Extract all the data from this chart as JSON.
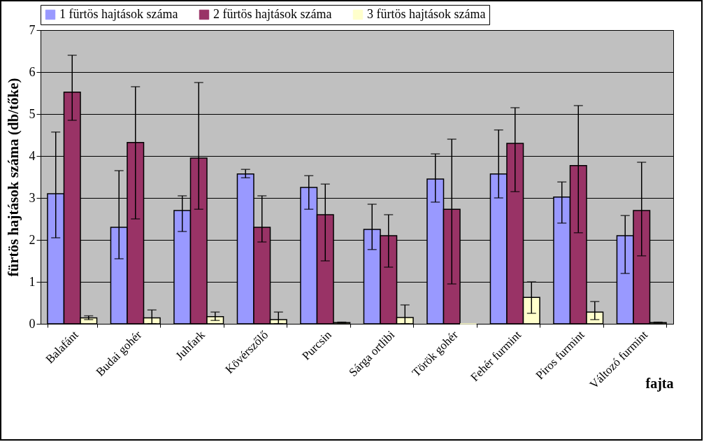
{
  "chart_data": {
    "type": "bar",
    "xlabel": "fajta",
    "ylabel": "fürtös hajtások száma (db/tőke)",
    "categories": [
      "Balafánt",
      "Budai gohér",
      "Juhfark",
      "Kövérszőlő",
      "Purcsin",
      "Sárga ortlibi",
      "Török gohér",
      "Fehér furmint",
      "Piros furmint",
      "Változó furmint"
    ],
    "series": [
      {
        "name": "1 fürtös hajtások száma",
        "color": "#9999ff",
        "values": [
          3.1,
          2.3,
          2.7,
          3.57,
          3.25,
          2.25,
          3.45,
          3.57,
          3.02,
          2.1
        ],
        "errors": [
          [
            2.05,
            4.57
          ],
          [
            1.55,
            3.65
          ],
          [
            2.2,
            3.05
          ],
          [
            3.48,
            3.68
          ],
          [
            2.73,
            3.53
          ],
          [
            1.77,
            2.85
          ],
          [
            2.9,
            4.05
          ],
          [
            3.0,
            4.62
          ],
          [
            2.4,
            3.38
          ],
          [
            1.2,
            2.58
          ]
        ]
      },
      {
        "name": "2 fürtös hajtások száma",
        "color": "#993366",
        "values": [
          5.52,
          4.32,
          3.95,
          2.3,
          2.6,
          2.1,
          2.73,
          4.3,
          3.77,
          2.7
        ],
        "errors": [
          [
            4.85,
            6.4
          ],
          [
            2.5,
            5.65
          ],
          [
            2.73,
            5.75
          ],
          [
            1.95,
            3.05
          ],
          [
            1.5,
            3.33
          ],
          [
            1.35,
            2.6
          ],
          [
            0.95,
            4.4
          ],
          [
            3.15,
            5.15
          ],
          [
            2.17,
            5.2
          ],
          [
            1.62,
            3.85
          ]
        ]
      },
      {
        "name": "3 fürtös hajtások száma",
        "color": "#ffffcc",
        "values": [
          0.14,
          0.14,
          0.17,
          0.1,
          0.03,
          0.15,
          0,
          0.63,
          0.28,
          0.03
        ],
        "errors": [
          [
            0.1,
            0.19
          ],
          [
            0.0,
            0.33
          ],
          [
            0.08,
            0.28
          ],
          [
            0.0,
            0.28
          ],
          [
            0.02,
            0.04
          ],
          [
            0.0,
            0.45
          ],
          null,
          [
            0.25,
            1.0
          ],
          [
            0.1,
            0.53
          ],
          [
            0.02,
            0.04
          ]
        ]
      }
    ],
    "ylim": [
      0,
      7
    ],
    "yticks": [
      0,
      1,
      2,
      3,
      4,
      5,
      6,
      7
    ],
    "grid": "y",
    "legend": "top"
  }
}
